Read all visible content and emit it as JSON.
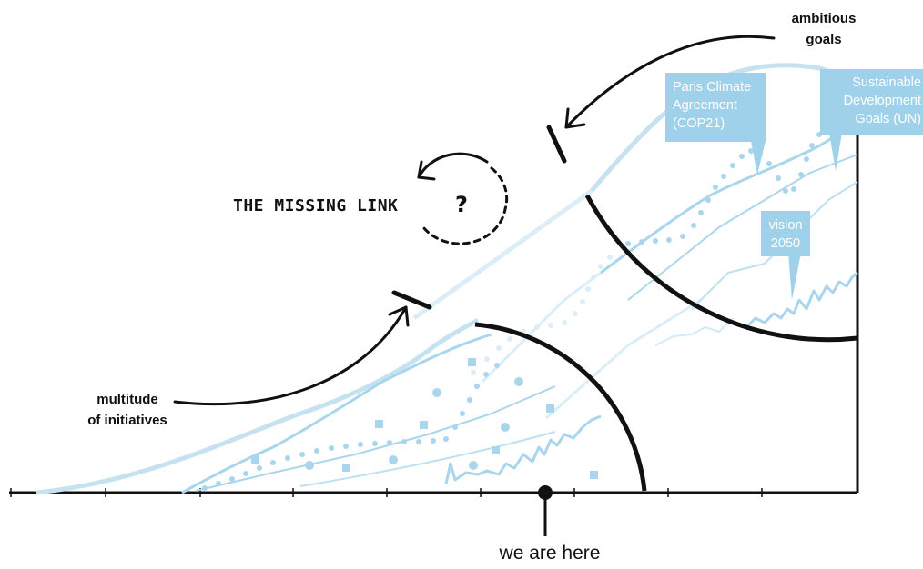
{
  "labels": {
    "ambitious_goals_line1": "ambitious",
    "ambitious_goals_line2": "goals",
    "missing_link": "THE MISSING LINK",
    "question_mark": "?",
    "multitude_line1": "multitude",
    "multitude_line2": "of initiatives",
    "we_are_here": "we are here"
  },
  "callouts": {
    "paris": [
      "Paris Climate",
      "Agreement",
      "(COP21)"
    ],
    "sdg": [
      "Sustainable",
      "Development",
      "Goals (UN)"
    ],
    "vision": [
      "vision",
      "2050"
    ]
  },
  "colors": {
    "ink": "#111111",
    "light_blue": "#a9d6ec",
    "pale_blue": "#cfe8f5",
    "callout_fill": "#9fd2ea",
    "callout_text": "#ffffff"
  }
}
